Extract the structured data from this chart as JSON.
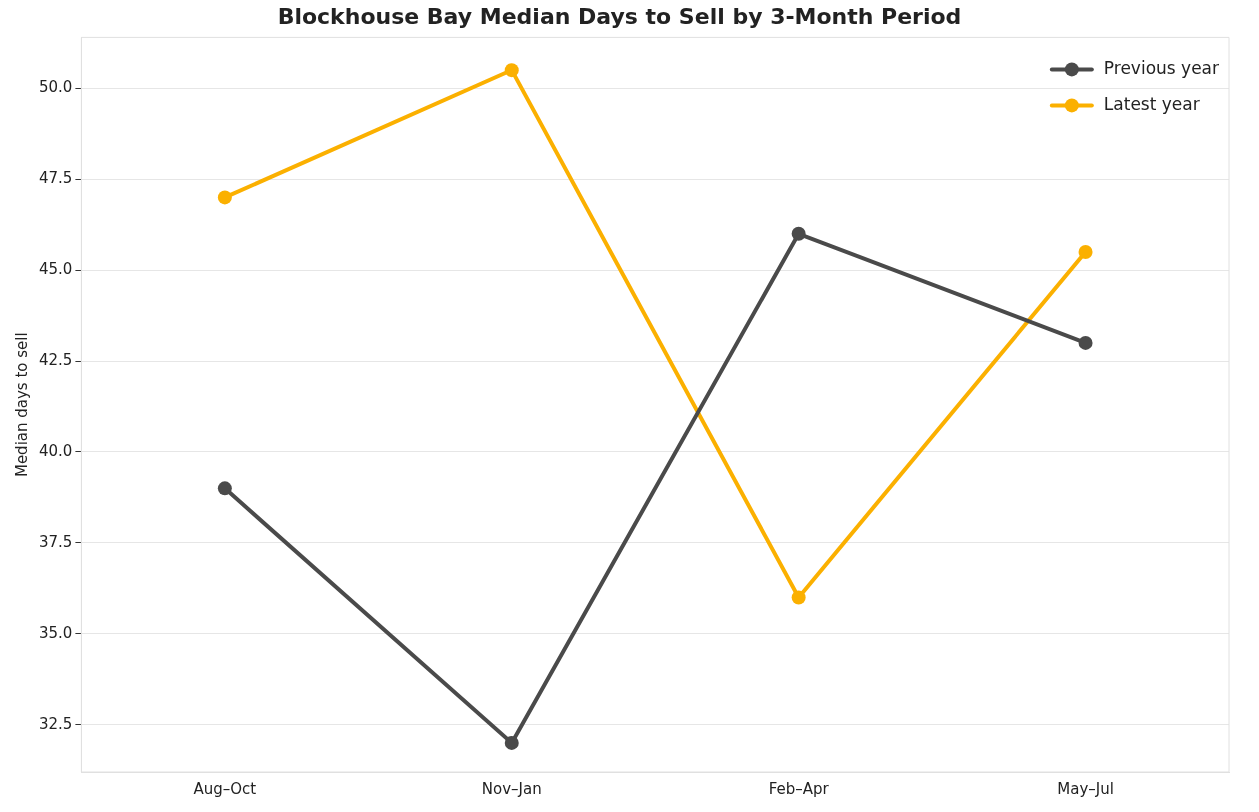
{
  "chart_data": {
    "type": "line",
    "title": "Blockhouse Bay Median Days to Sell by 3-Month Period",
    "ylabel": "Median days to sell",
    "categories": [
      "Aug–Oct",
      "Nov–Jan",
      "Feb–Apr",
      "May–Jul"
    ],
    "series": [
      {
        "name": "Previous year",
        "color": "#4a4a4a",
        "values": [
          39,
          32,
          46,
          43
        ]
      },
      {
        "name": "Latest year",
        "color": "#fbb000",
        "values": [
          47,
          50.5,
          36,
          45.5
        ]
      }
    ],
    "ylim": [
      31.2,
      51.4
    ],
    "yticks": [
      {
        "value": 32.5,
        "label": "32.5"
      },
      {
        "value": 35,
        "label": "35.0"
      },
      {
        "value": 37.5,
        "label": "37.5"
      },
      {
        "value": 40,
        "label": "40.0"
      },
      {
        "value": 42.5,
        "label": "42.5"
      },
      {
        "value": 45,
        "label": "45.0"
      },
      {
        "value": 47.5,
        "label": "47.5"
      },
      {
        "value": 50,
        "label": "50.0"
      }
    ],
    "grid": "y",
    "legend": "top right",
    "marker": "circle",
    "line_style": "solid"
  }
}
